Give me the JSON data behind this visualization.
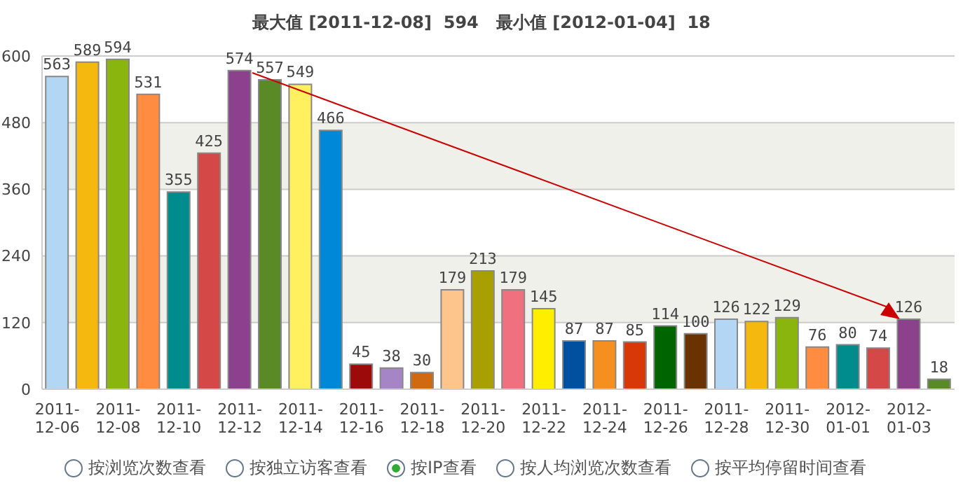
{
  "chart_data": {
    "type": "bar",
    "title": "最大值 [2011-12-08]  594   最小值 [2012-01-04]  18",
    "categories": [
      "2011-12-06",
      null,
      "2011-12-08",
      null,
      "2011-12-10",
      null,
      "2011-12-12",
      null,
      "2011-12-14",
      null,
      "2011-12-16",
      null,
      "2011-12-18",
      null,
      "2011-12-20",
      null,
      "2011-12-22",
      null,
      "2011-12-24",
      null,
      "2011-12-26",
      null,
      "2011-12-28",
      null,
      "2011-12-30",
      null,
      "2012-01-01",
      null,
      "2012-01-03",
      null
    ],
    "values": [
      563,
      589,
      594,
      531,
      355,
      425,
      574,
      557,
      549,
      466,
      45,
      38,
      30,
      179,
      213,
      179,
      145,
      87,
      87,
      85,
      114,
      100,
      126,
      122,
      129,
      76,
      80,
      74,
      126,
      18
    ],
    "colors": [
      "#b3d6f5",
      "#f5b80f",
      "#8ab40e",
      "#ff8c40",
      "#008c8c",
      "#d44848",
      "#8b418b",
      "#5a8a28",
      "#fff060",
      "#0088d8",
      "#9c0a0a",
      "#a585c5",
      "#d06a10",
      "#fdc48c",
      "#a8a000",
      "#f07080",
      "#ffee00",
      "#0050a0",
      "#f59020",
      "#d83808",
      "#006400",
      "#6a3200",
      "#b3d6f5",
      "#f5b80f",
      "#8ab40e",
      "#ff8c40",
      "#008c8c",
      "#d44848",
      "#8b418b",
      "#5a8a28"
    ],
    "ylim": [
      0,
      600
    ],
    "yticks": [
      0,
      120,
      240,
      360,
      480,
      600
    ],
    "grid": "y",
    "data_labels": true,
    "annotations": [
      "按浏览次数查看",
      "按独立访客查看",
      "按IP查看",
      "按人均浏览次数查看",
      "按平均停留时间查看"
    ]
  }
}
